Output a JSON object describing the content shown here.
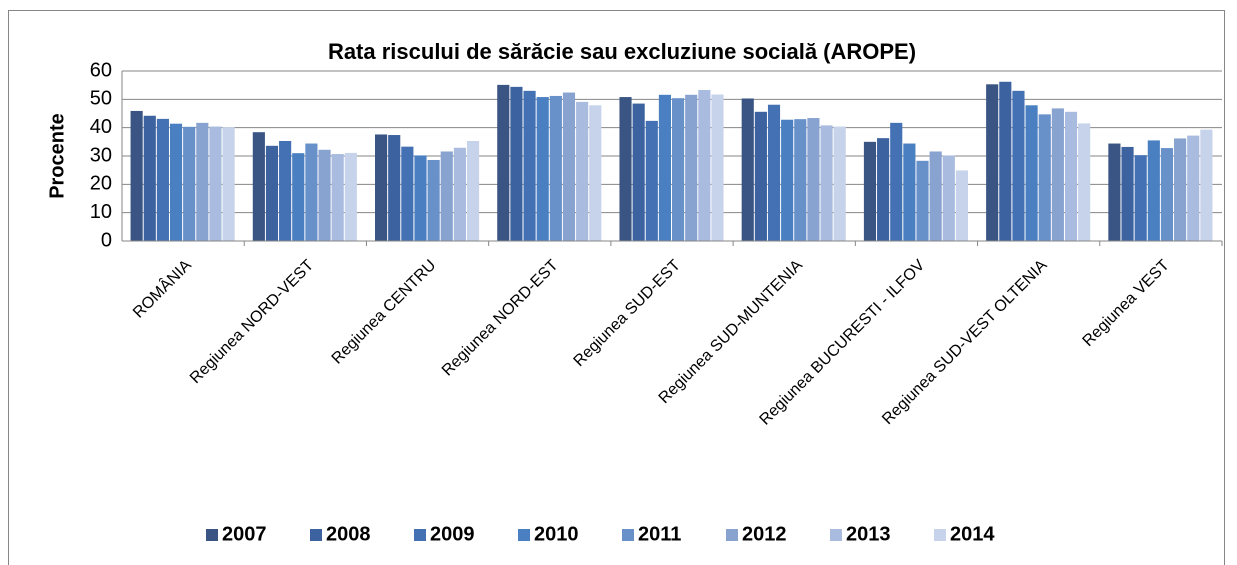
{
  "chart_data": {
    "type": "bar",
    "title": "Rata riscului de sărăcie sau excluziune socială (AROPE)",
    "y_label": "Procente",
    "categories": [
      "ROMÂNIA",
      "Regiunea NORD-VEST",
      "Regiunea CENTRU",
      "Regiunea NORD-EST",
      "Regiunea SUD-EST",
      "Regiunea SUD-MUNTENIA",
      "Regiunea BUCURESTI - ILFOV",
      "Regiunea SUD-VEST OLTENIA",
      "Regiunea VEST"
    ],
    "series": [
      {
        "name": "2007",
        "color": "#3a5584",
        "values": [
          45.9,
          38.4,
          37.6,
          55.1,
          50.8,
          50.3,
          35.0,
          55.3,
          34.4
        ]
      },
      {
        "name": "2008",
        "color": "#3d62a0",
        "values": [
          44.2,
          33.6,
          37.4,
          54.4,
          48.5,
          45.6,
          36.3,
          56.2,
          33.2
        ]
      },
      {
        "name": "2009",
        "color": "#4371b3",
        "values": [
          43.1,
          35.3,
          33.3,
          53.0,
          42.4,
          48.1,
          41.7,
          53.0,
          30.3
        ]
      },
      {
        "name": "2010",
        "color": "#4a80c2",
        "values": [
          41.4,
          31.0,
          30.2,
          50.8,
          51.6,
          42.8,
          34.4,
          47.9,
          35.5
        ]
      },
      {
        "name": "2011",
        "color": "#6890c9",
        "values": [
          40.3,
          34.4,
          28.6,
          51.2,
          50.4,
          43.0,
          28.3,
          44.7,
          32.8
        ]
      },
      {
        "name": "2012",
        "color": "#89a3d0",
        "values": [
          41.7,
          32.2,
          31.6,
          52.4,
          51.6,
          43.4,
          31.6,
          46.8,
          36.2
        ]
      },
      {
        "name": "2013",
        "color": "#a9bcdf",
        "values": [
          40.4,
          30.7,
          32.9,
          49.1,
          53.3,
          40.8,
          30.2,
          45.6,
          37.2
        ]
      },
      {
        "name": "2014",
        "color": "#c7d3ea",
        "values": [
          40.2,
          31.1,
          35.3,
          47.9,
          51.7,
          40.4,
          24.9,
          41.5,
          39.3
        ]
      }
    ],
    "ylim": [
      0,
      60
    ],
    "yticks": [
      0,
      10,
      20,
      30,
      40,
      50,
      60
    ],
    "grid": true,
    "legend": "bottom"
  }
}
